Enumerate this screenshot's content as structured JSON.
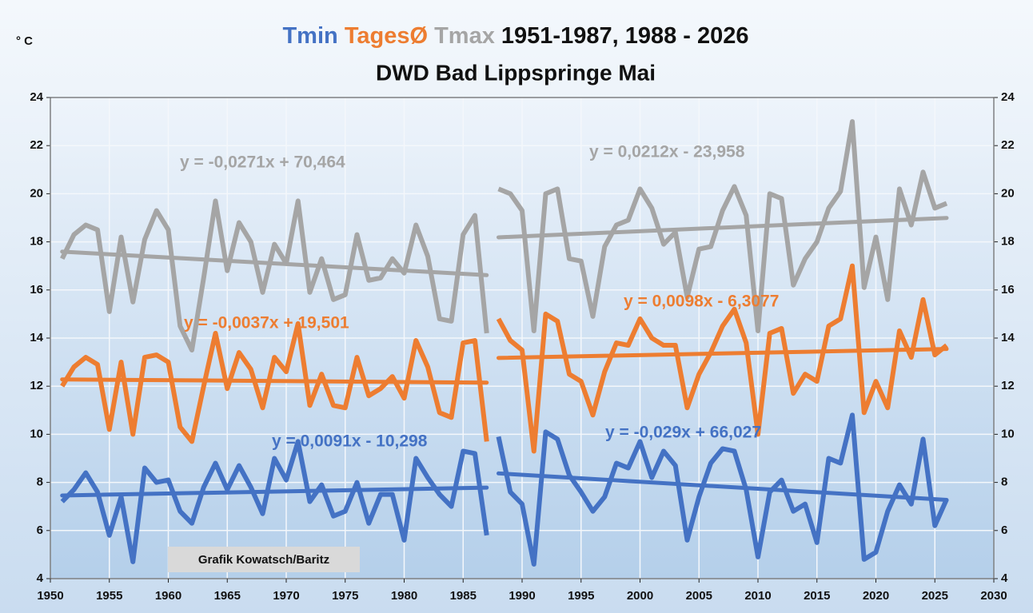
{
  "chart_data": {
    "type": "line",
    "title": "1951-1987, 1988 - 2026",
    "subtitle": "DWD Bad Lippspringe Mai",
    "y_label": "° C",
    "annotation": "Grafik Kowatsch/Baritz",
    "x": [
      1951,
      1952,
      1953,
      1954,
      1955,
      1956,
      1957,
      1958,
      1959,
      1960,
      1961,
      1962,
      1963,
      1964,
      1965,
      1966,
      1967,
      1968,
      1969,
      1970,
      1971,
      1972,
      1973,
      1974,
      1975,
      1976,
      1977,
      1978,
      1979,
      1980,
      1981,
      1982,
      1983,
      1984,
      1985,
      1986,
      1987,
      null,
      1988,
      1989,
      1990,
      1991,
      1992,
      1993,
      1994,
      1995,
      1996,
      1997,
      1998,
      1999,
      2000,
      2001,
      2002,
      2003,
      2004,
      2005,
      2006,
      2007,
      2008,
      2009,
      2010,
      2011,
      2012,
      2013,
      2014,
      2015,
      2016,
      2017,
      2018,
      2019,
      2020,
      2021,
      2022,
      2023,
      2024,
      2025,
      2026
    ],
    "series": [
      {
        "name": "Tmin",
        "color": "#4472c4",
        "values": [
          7.2,
          7.7,
          8.4,
          7.6,
          5.8,
          7.4,
          4.7,
          8.6,
          8.0,
          8.1,
          6.8,
          6.3,
          7.8,
          8.8,
          7.7,
          8.7,
          7.8,
          6.7,
          9.0,
          8.1,
          9.7,
          7.2,
          7.9,
          6.6,
          6.8,
          8.0,
          6.3,
          7.5,
          7.5,
          5.6,
          9.0,
          8.2,
          7.5,
          7.0,
          9.3,
          9.2,
          5.8,
          null,
          9.9,
          7.6,
          7.1,
          4.6,
          10.1,
          9.8,
          8.3,
          7.6,
          6.8,
          7.4,
          8.8,
          8.6,
          9.7,
          8.2,
          9.3,
          8.7,
          5.6,
          7.4,
          8.8,
          9.4,
          9.3,
          7.7,
          4.9,
          7.6,
          8.1,
          6.8,
          7.1,
          5.5,
          9.0,
          8.8,
          10.8,
          4.8,
          5.1,
          6.8,
          7.9,
          7.1,
          9.8,
          6.2,
          7.3
        ]
      },
      {
        "name": "TagesØ",
        "color": "#ed7d31",
        "values": [
          12.0,
          12.8,
          13.2,
          12.9,
          10.2,
          13.0,
          10.0,
          13.2,
          13.3,
          13.0,
          10.3,
          9.7,
          12.0,
          14.2,
          11.9,
          13.4,
          12.7,
          11.1,
          13.2,
          12.6,
          14.6,
          11.2,
          12.5,
          11.2,
          11.1,
          13.2,
          11.6,
          11.9,
          12.4,
          11.5,
          13.9,
          12.8,
          10.9,
          10.7,
          13.8,
          13.9,
          9.7,
          null,
          14.8,
          13.9,
          13.5,
          9.3,
          15.0,
          14.7,
          12.5,
          12.2,
          10.8,
          12.6,
          13.8,
          13.7,
          14.8,
          14.0,
          13.7,
          13.7,
          11.1,
          12.5,
          13.4,
          14.5,
          15.2,
          13.8,
          10.0,
          14.2,
          14.4,
          11.7,
          12.5,
          12.2,
          14.5,
          14.8,
          17.0,
          10.9,
          12.2,
          11.1,
          14.3,
          13.2,
          15.6,
          13.3,
          13.7
        ]
      },
      {
        "name": "Tmax",
        "color": "#a5a5a5",
        "values": [
          17.3,
          18.3,
          18.7,
          18.5,
          15.1,
          18.2,
          15.5,
          18.1,
          19.3,
          18.5,
          14.5,
          13.5,
          16.5,
          19.7,
          16.8,
          18.8,
          18.0,
          15.9,
          17.9,
          17.1,
          19.7,
          15.9,
          17.3,
          15.6,
          15.8,
          18.3,
          16.4,
          16.5,
          17.3,
          16.7,
          18.7,
          17.4,
          14.8,
          14.7,
          18.3,
          19.1,
          14.2,
          null,
          20.2,
          20.0,
          19.3,
          14.3,
          20.0,
          20.2,
          17.3,
          17.2,
          14.9,
          17.8,
          18.7,
          18.9,
          20.2,
          19.4,
          17.9,
          18.4,
          15.7,
          17.7,
          17.8,
          19.3,
          20.3,
          19.1,
          14.3,
          20.0,
          19.8,
          16.2,
          17.3,
          18.0,
          19.4,
          20.1,
          23.0,
          16.1,
          18.2,
          15.6,
          20.2,
          18.7,
          20.9,
          19.4,
          19.6
        ]
      }
    ],
    "trends": [
      {
        "series": 0,
        "label": "y = 0,0091x - 10,298",
        "slope": 0.0091,
        "intercept": -10.298,
        "x": [
          1951,
          1987
        ]
      },
      {
        "series": 0,
        "label": "y = -0,029x + 66,027",
        "slope": -0.029,
        "intercept": 66.027,
        "x": [
          1988,
          2026
        ]
      },
      {
        "series": 1,
        "label": "y = -0,0037x + 19,501",
        "slope": -0.0037,
        "intercept": 19.501,
        "x": [
          1951,
          1987
        ]
      },
      {
        "series": 1,
        "label": "y = 0,0098x - 6,3077",
        "slope": 0.0098,
        "intercept": -6.3077,
        "x": [
          1988,
          2026
        ]
      },
      {
        "series": 2,
        "label": "y = -0,0271x + 70,464",
        "slope": -0.0271,
        "intercept": 70.464,
        "x": [
          1951,
          1987
        ]
      },
      {
        "series": 2,
        "label": "y = 0,0212x - 23,958",
        "slope": 0.0212,
        "intercept": -23.958,
        "x": [
          1988,
          2026
        ]
      }
    ],
    "xlim": [
      1950,
      2030
    ],
    "xticks": [
      1950,
      1955,
      1960,
      1965,
      1970,
      1975,
      1980,
      1985,
      1990,
      1995,
      2000,
      2005,
      2010,
      2015,
      2020,
      2025,
      2030
    ],
    "ylim": [
      4,
      24
    ],
    "yticks": [
      4,
      6,
      8,
      10,
      12,
      14,
      16,
      18,
      20,
      22,
      24
    ],
    "y2lim": [
      4,
      24
    ],
    "y2ticks": [
      4,
      6,
      8,
      10,
      12,
      14,
      16,
      18,
      20,
      22,
      24
    ],
    "grid": true
  }
}
